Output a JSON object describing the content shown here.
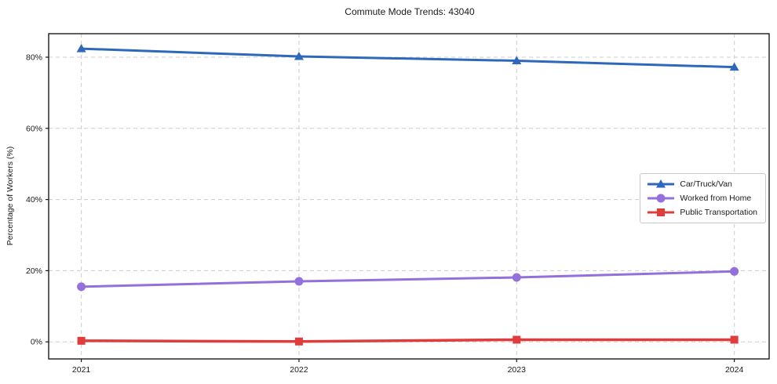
{
  "chart_data": {
    "type": "line",
    "title": "Commute Mode Trends: 43040",
    "xlabel": "",
    "ylabel": "Percentage of Workers (%)",
    "x": [
      2021,
      2022,
      2023,
      2024
    ],
    "x_tick_labels": [
      "2021",
      "2022",
      "2023",
      "2024"
    ],
    "y_ticks": [
      0,
      20,
      40,
      60,
      80
    ],
    "y_tick_labels": [
      "0%",
      "20%",
      "40%",
      "60%",
      "80%"
    ],
    "xlim": [
      2020.85,
      2024.16
    ],
    "ylim": [
      -4.8,
      86.6
    ],
    "grid": "both-dashed",
    "legend_position": "center right",
    "series": [
      {
        "name": "Car/Truck/Van",
        "marker": "triangle",
        "color": "#2d68bb",
        "values": [
          82.4,
          80.2,
          79.0,
          77.2
        ]
      },
      {
        "name": "Worked from Home",
        "marker": "circle",
        "color": "#9370db",
        "values": [
          15.5,
          17.0,
          18.1,
          19.8
        ]
      },
      {
        "name": "Public Transportation",
        "marker": "square",
        "color": "#e03c3c",
        "values": [
          0.3,
          0.1,
          0.6,
          0.6
        ]
      }
    ],
    "colors": {
      "grid": "#cccccc",
      "spine": "#1a1a1a",
      "background": "#ffffff"
    }
  }
}
